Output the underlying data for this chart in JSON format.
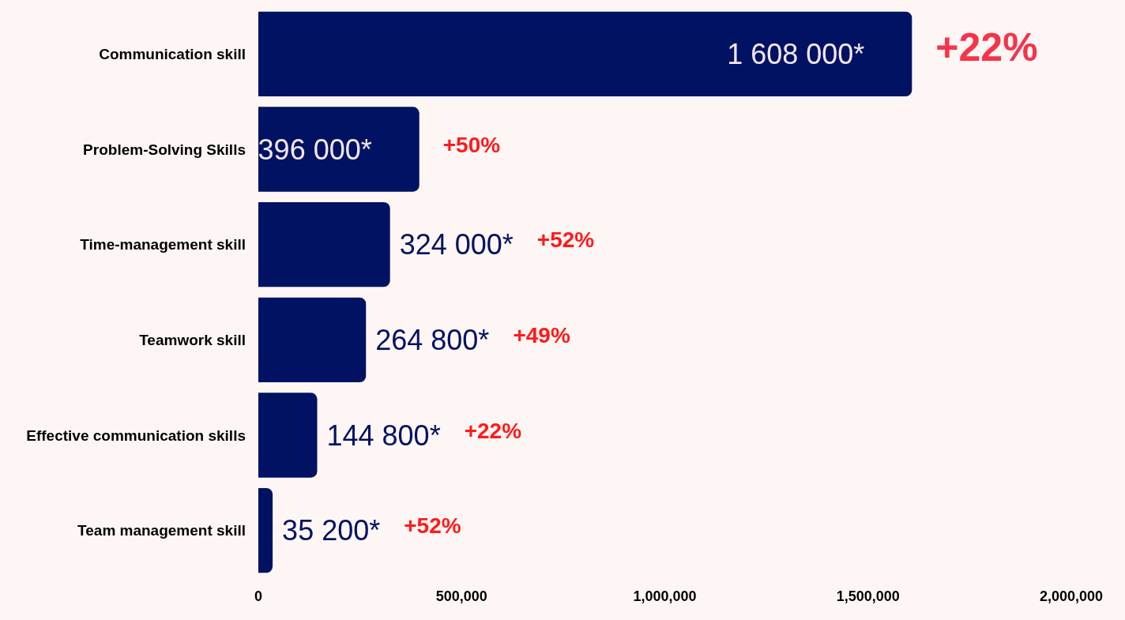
{
  "chart_data": {
    "type": "bar",
    "orientation": "horizontal",
    "categories": [
      "Communication skill",
      "Problem-Solving Skills",
      "Time-management skill",
      "Teamwork skill",
      "Effective communication skills",
      "Team management skill"
    ],
    "values": [
      1608000,
      396000,
      324000,
      264800,
      144800,
      35200
    ],
    "value_labels": [
      "1 608 000*",
      "396 000*",
      "324 000*",
      "264 800*",
      "144 800*",
      "35 200*"
    ],
    "color": "#021263",
    "xlim": [
      0,
      2000000
    ],
    "xticks": [
      0,
      {
        "value": 500000,
        "label": "500,000"
      },
      {
        "value": 1000000,
        "label": "1,000,000"
      },
      {
        "value": 1500000,
        "label": "1,500,000"
      },
      {
        "value": 2000000,
        "label": "2,000,000"
      }
    ],
    "grid": false,
    "annotations": [
      "+22%",
      "+50%",
      "+52%",
      "+49%",
      "+22%",
      "+52%"
    ]
  }
}
